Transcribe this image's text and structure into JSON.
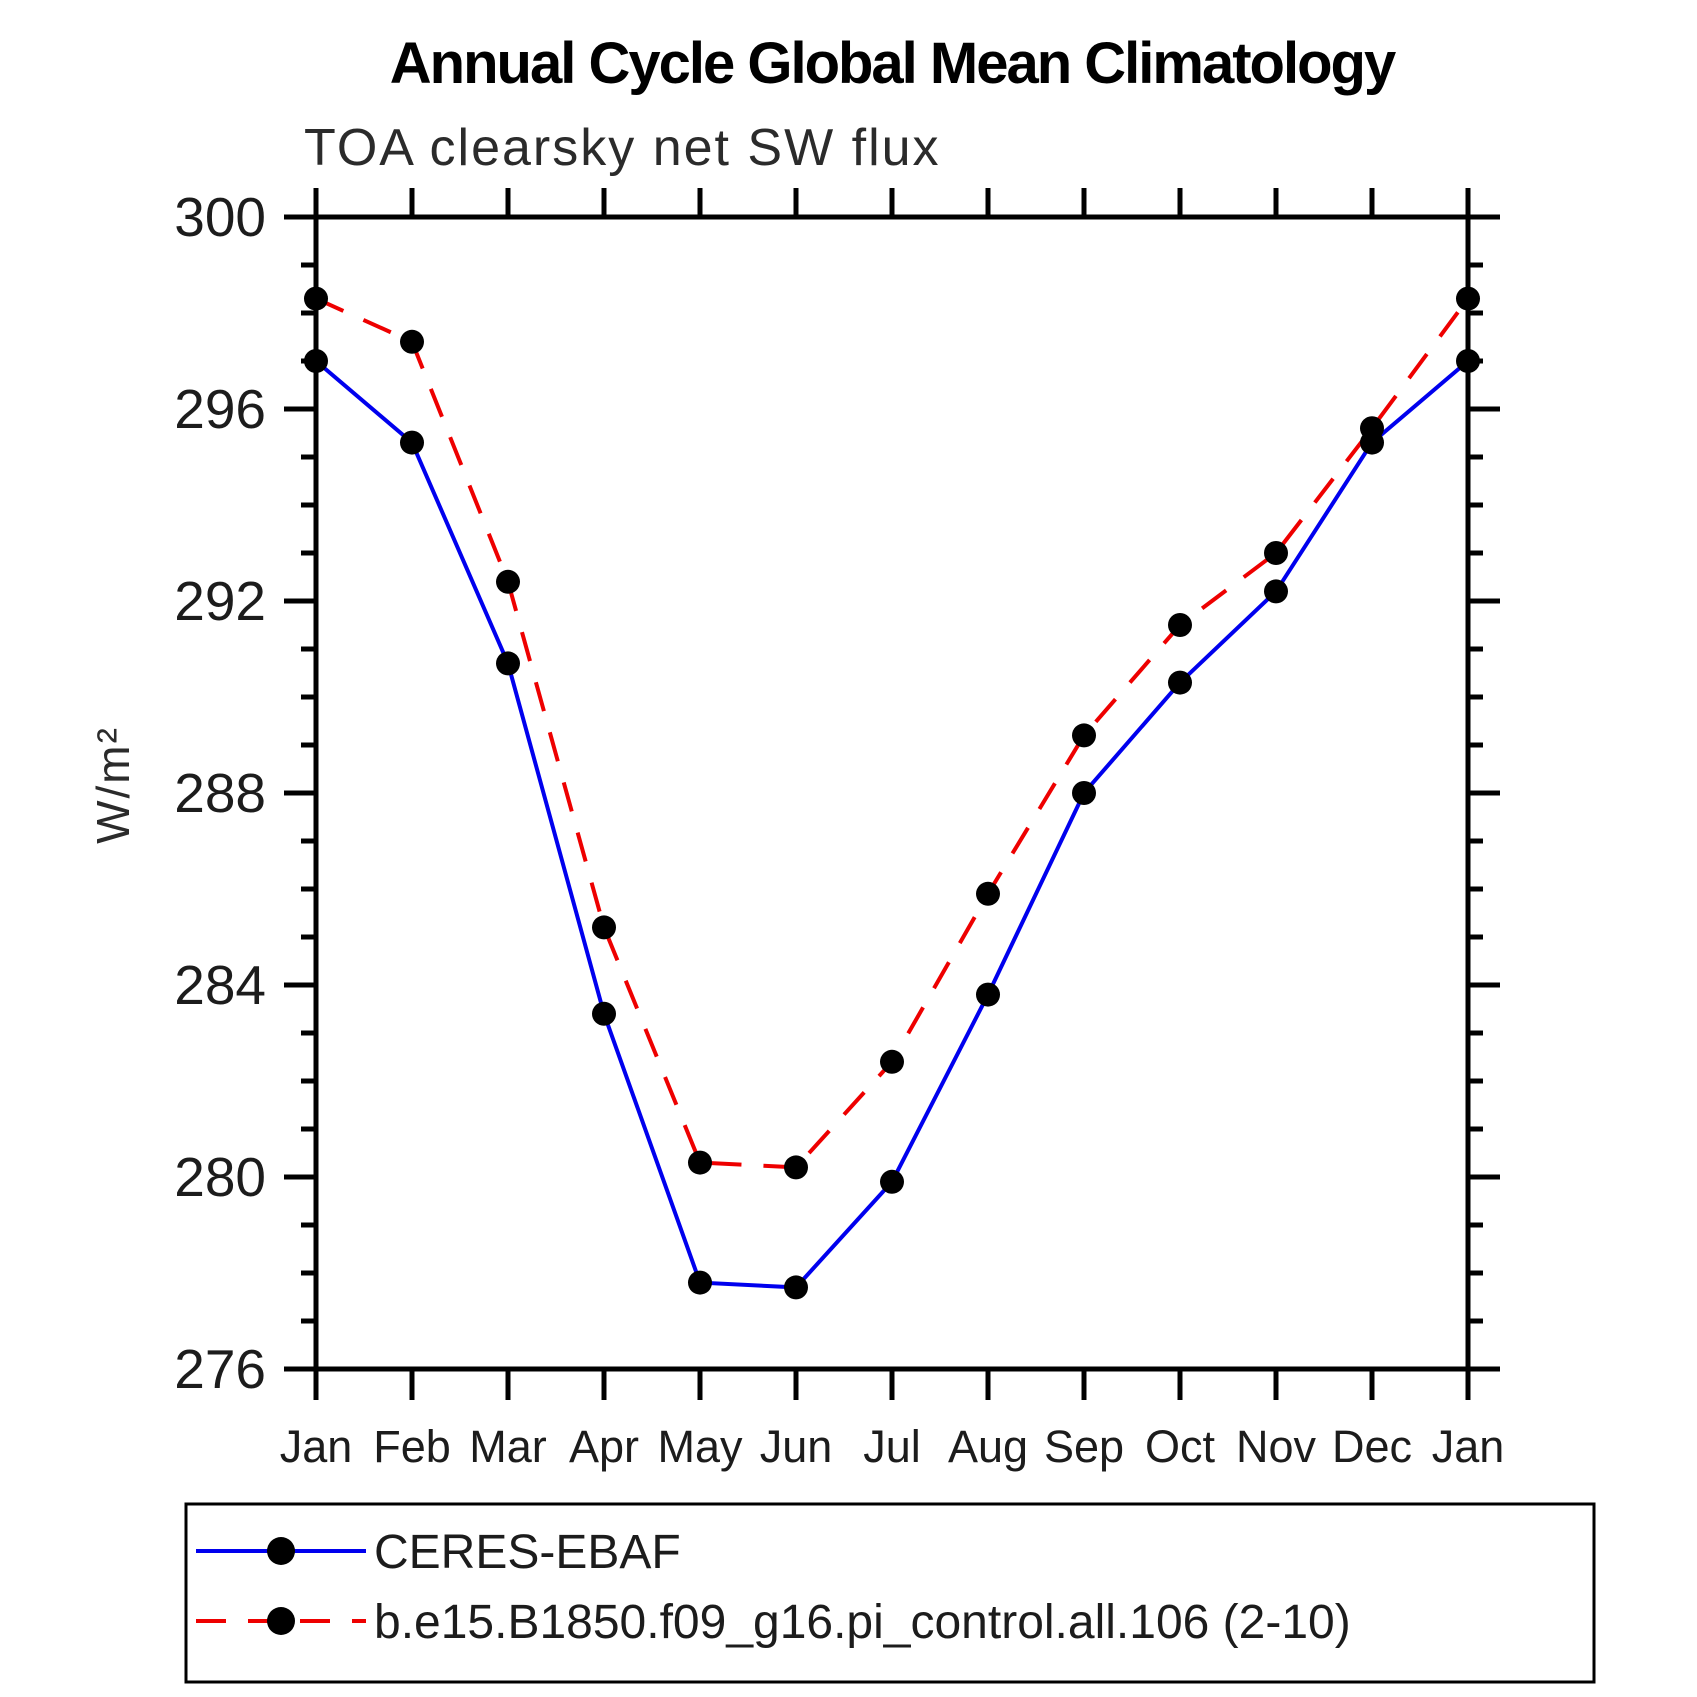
{
  "chart": {
    "title": "Annual Cycle Global Mean Climatology",
    "subtitle": "TOA clearsky net SW flux",
    "y_axis": {
      "title": "W/m²",
      "min": 276,
      "max": 300,
      "major_tick_step": 4,
      "minor_tick_step": 1,
      "major_tick_labels": [
        "300",
        "296",
        "292",
        "288",
        "284",
        "280",
        "276"
      ]
    },
    "x_axis": {
      "tick_labels": [
        "Jan",
        "Feb",
        "Mar",
        "Apr",
        "May",
        "Jun",
        "Jul",
        "Aug",
        "Sep",
        "Oct",
        "Nov",
        "Dec",
        "Jan"
      ]
    },
    "legend": [
      {
        "label": "CERES-EBAF",
        "color": "#0000ee",
        "style": "solid",
        "marker": "black-dot"
      },
      {
        "label": "b.e15.B1850.f09_g16.pi_control.all.106 (2-10)",
        "color": "#ee0000",
        "style": "dashed",
        "marker": "black-dot"
      }
    ],
    "colors": {
      "observation_line": "#0000ee",
      "model_line": "#ee0000",
      "marker": "#000000",
      "axis": "#000000",
      "background": "#ffffff"
    }
  },
  "chart_data": {
    "type": "line",
    "title": "Annual Cycle Global Mean Climatology",
    "subtitle": "TOA clearsky net SW flux",
    "xlabel": "",
    "ylabel": "W/m²",
    "ylim": [
      276,
      300
    ],
    "y_major_ticks": [
      276,
      280,
      284,
      288,
      292,
      296,
      300
    ],
    "y_minor_tick_step": 1,
    "grid": false,
    "legend_position": "bottom-left-box",
    "categories": [
      "Jan",
      "Feb",
      "Mar",
      "Apr",
      "May",
      "Jun",
      "Jul",
      "Aug",
      "Sep",
      "Oct",
      "Nov",
      "Dec",
      "Jan"
    ],
    "series": [
      {
        "name": "CERES-EBAF",
        "color": "#0000ee",
        "line_style": "solid",
        "marker": "filled-circle",
        "values": [
          297.0,
          295.3,
          290.7,
          283.4,
          277.8,
          277.7,
          279.9,
          283.8,
          288.0,
          290.3,
          292.2,
          295.3,
          297.0
        ]
      },
      {
        "name": "b.e15.B1850.f09_g16.pi_control.all.106 (2-10)",
        "color": "#ee0000",
        "line_style": "dashed",
        "marker": "filled-circle",
        "values": [
          298.3,
          297.4,
          292.4,
          285.2,
          280.3,
          280.2,
          282.4,
          285.9,
          289.2,
          291.5,
          293.0,
          295.6,
          298.3
        ]
      }
    ]
  }
}
